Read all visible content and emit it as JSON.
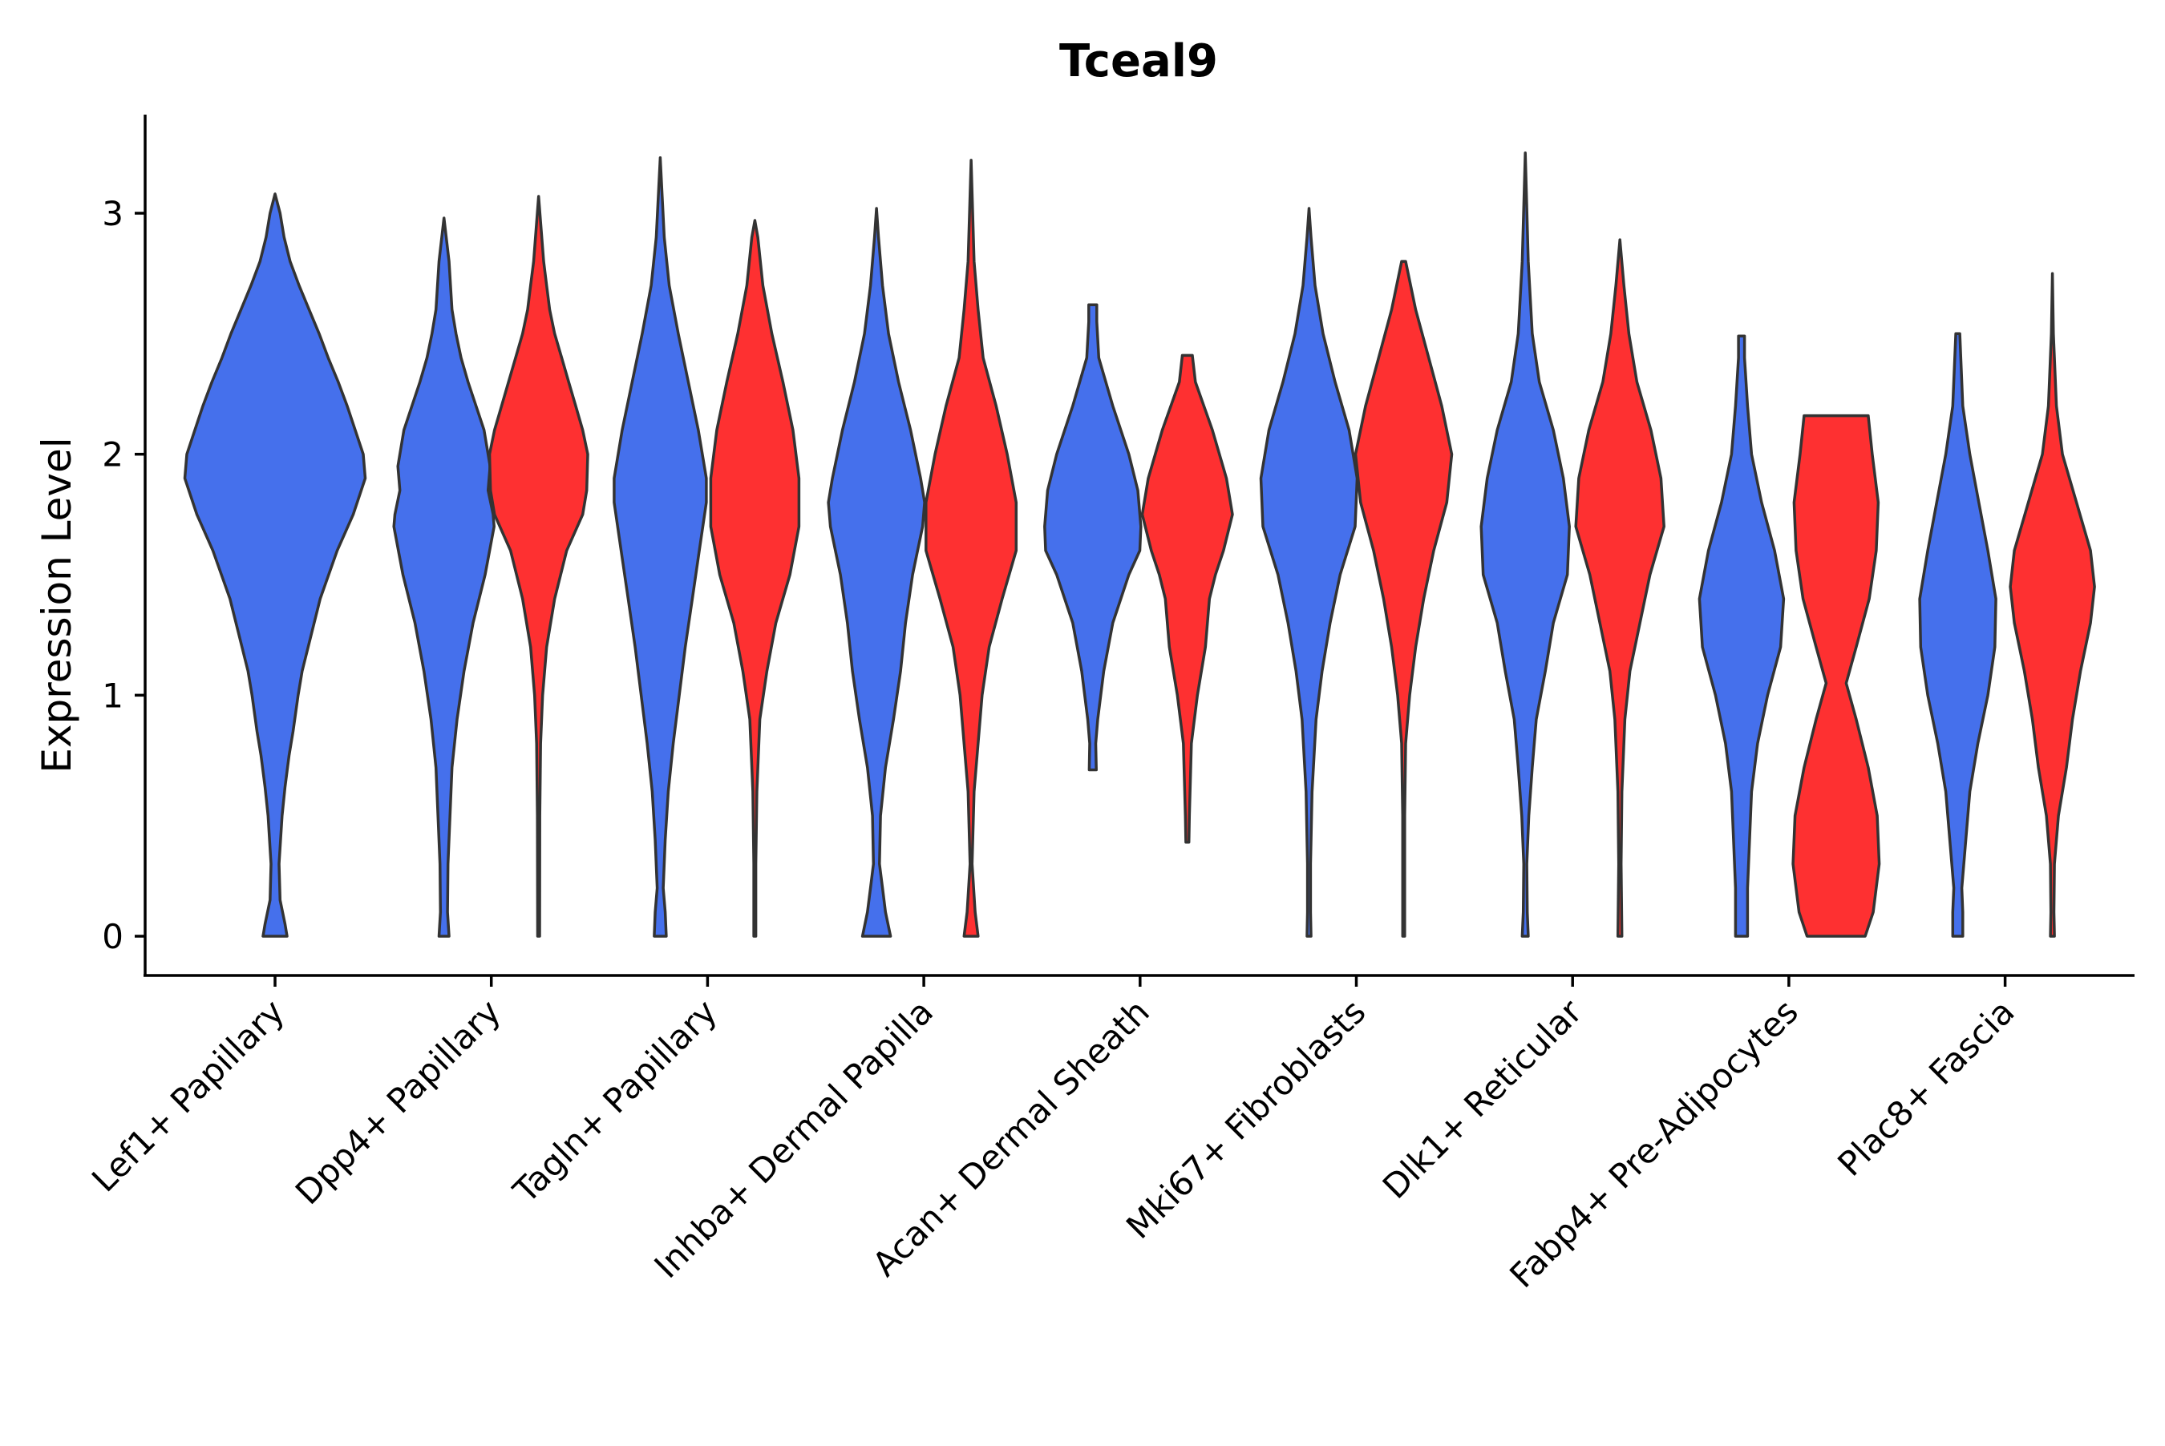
{
  "chart_data": {
    "type": "violin",
    "title": "Tceal9",
    "xlabel": "",
    "ylabel": "Expression Level",
    "ylim": [
      -0.16,
      3.4
    ],
    "yticks": [
      0,
      1,
      2,
      3
    ],
    "grid": false,
    "legend": "none",
    "series": [
      {
        "name": "group A",
        "color": "#4570ec"
      },
      {
        "name": "group B",
        "color": "#fe3031"
      }
    ],
    "categories": [
      "Lef1+ Papillary",
      "Dpp4+ Papillary",
      "Tagln+ Papillary",
      "Inhba+ Dermal Papilla",
      "Acan+ Dermal Sheath",
      "Mki67+ Fibroblasts",
      "Dlk1+ Reticular",
      "Fabp4+ Pre-Adipocytes",
      "Plac8+ Fascia"
    ],
    "violins": [
      {
        "category": "Lef1+ Papillary",
        "series": 0,
        "min": 0,
        "max": 3.08,
        "profile": [
          [
            0,
            0.12
          ],
          [
            0.05,
            0.1
          ],
          [
            0.15,
            0.05
          ],
          [
            0.3,
            0.04
          ],
          [
            0.5,
            0.07
          ],
          [
            0.62,
            0.1
          ],
          [
            0.75,
            0.14
          ],
          [
            0.85,
            0.18
          ],
          [
            1.0,
            0.23
          ],
          [
            1.1,
            0.27
          ],
          [
            1.2,
            0.33
          ],
          [
            1.4,
            0.45
          ],
          [
            1.6,
            0.62
          ],
          [
            1.75,
            0.78
          ],
          [
            1.9,
            0.9
          ],
          [
            2.0,
            0.88
          ],
          [
            2.1,
            0.8
          ],
          [
            2.2,
            0.72
          ],
          [
            2.3,
            0.63
          ],
          [
            2.4,
            0.53
          ],
          [
            2.5,
            0.44
          ],
          [
            2.6,
            0.34
          ],
          [
            2.7,
            0.24
          ],
          [
            2.8,
            0.15
          ],
          [
            2.9,
            0.09
          ],
          [
            3.0,
            0.05
          ],
          [
            3.08,
            0
          ]
        ]
      },
      {
        "category": "Dpp4+ Papillary",
        "series": 0,
        "min": 0,
        "max": 2.98,
        "profile": [
          [
            0,
            0.05
          ],
          [
            0.1,
            0.035
          ],
          [
            0.3,
            0.04
          ],
          [
            0.5,
            0.06
          ],
          [
            0.7,
            0.08
          ],
          [
            0.9,
            0.13
          ],
          [
            1.1,
            0.2
          ],
          [
            1.3,
            0.29
          ],
          [
            1.5,
            0.41
          ],
          [
            1.7,
            0.5
          ],
          [
            1.75,
            0.49
          ],
          [
            1.85,
            0.44
          ],
          [
            1.95,
            0.46
          ],
          [
            2.1,
            0.4
          ],
          [
            2.2,
            0.32
          ],
          [
            2.3,
            0.24
          ],
          [
            2.4,
            0.17
          ],
          [
            2.5,
            0.12
          ],
          [
            2.6,
            0.08
          ],
          [
            2.8,
            0.05
          ],
          [
            2.98,
            0
          ]
        ]
      },
      {
        "category": "Dpp4+ Papillary",
        "series": 1,
        "min": 0,
        "max": 3.07,
        "profile": [
          [
            0,
            0.01
          ],
          [
            0.5,
            0.012
          ],
          [
            0.8,
            0.02
          ],
          [
            1.0,
            0.04
          ],
          [
            1.2,
            0.08
          ],
          [
            1.4,
            0.16
          ],
          [
            1.6,
            0.28
          ],
          [
            1.75,
            0.44
          ],
          [
            1.85,
            0.48
          ],
          [
            2.0,
            0.49
          ],
          [
            2.1,
            0.44
          ],
          [
            2.2,
            0.37
          ],
          [
            2.3,
            0.3
          ],
          [
            2.4,
            0.23
          ],
          [
            2.5,
            0.16
          ],
          [
            2.6,
            0.11
          ],
          [
            2.7,
            0.08
          ],
          [
            2.8,
            0.05
          ],
          [
            3.07,
            0
          ]
        ]
      },
      {
        "category": "Tagln+ Papillary",
        "series": 0,
        "min": 0,
        "max": 3.23,
        "profile": [
          [
            0,
            0.06
          ],
          [
            0.1,
            0.05
          ],
          [
            0.2,
            0.03
          ],
          [
            0.4,
            0.05
          ],
          [
            0.6,
            0.08
          ],
          [
            0.8,
            0.13
          ],
          [
            1.0,
            0.19
          ],
          [
            1.2,
            0.25
          ],
          [
            1.4,
            0.32
          ],
          [
            1.6,
            0.39
          ],
          [
            1.8,
            0.46
          ],
          [
            1.9,
            0.46
          ],
          [
            2.1,
            0.38
          ],
          [
            2.3,
            0.28
          ],
          [
            2.5,
            0.18
          ],
          [
            2.7,
            0.09
          ],
          [
            2.9,
            0.04
          ],
          [
            3.23,
            0
          ]
        ]
      },
      {
        "category": "Tagln+ Papillary",
        "series": 1,
        "min": 0,
        "max": 2.97,
        "profile": [
          [
            0,
            0.01
          ],
          [
            0.3,
            0.01
          ],
          [
            0.6,
            0.02
          ],
          [
            0.9,
            0.05
          ],
          [
            1.1,
            0.12
          ],
          [
            1.3,
            0.21
          ],
          [
            1.5,
            0.35
          ],
          [
            1.7,
            0.44
          ],
          [
            1.9,
            0.44
          ],
          [
            2.1,
            0.38
          ],
          [
            2.3,
            0.28
          ],
          [
            2.5,
            0.17
          ],
          [
            2.7,
            0.08
          ],
          [
            2.9,
            0.03
          ],
          [
            2.97,
            0
          ]
        ]
      },
      {
        "category": "Inhba+ Dermal Papilla",
        "series": 0,
        "min": 0,
        "max": 3.02,
        "profile": [
          [
            0,
            0.14
          ],
          [
            0.1,
            0.09
          ],
          [
            0.2,
            0.06
          ],
          [
            0.3,
            0.03
          ],
          [
            0.5,
            0.04
          ],
          [
            0.7,
            0.09
          ],
          [
            0.9,
            0.17
          ],
          [
            1.1,
            0.24
          ],
          [
            1.3,
            0.29
          ],
          [
            1.5,
            0.36
          ],
          [
            1.7,
            0.46
          ],
          [
            1.8,
            0.48
          ],
          [
            1.9,
            0.44
          ],
          [
            2.1,
            0.34
          ],
          [
            2.3,
            0.22
          ],
          [
            2.5,
            0.12
          ],
          [
            2.7,
            0.06
          ],
          [
            2.9,
            0.02
          ],
          [
            3.02,
            0
          ]
        ]
      },
      {
        "category": "Inhba+ Dermal Papilla",
        "series": 1,
        "min": 0,
        "max": 3.22,
        "profile": [
          [
            0,
            0.07
          ],
          [
            0.1,
            0.04
          ],
          [
            0.3,
            0.01
          ],
          [
            0.6,
            0.03
          ],
          [
            0.8,
            0.07
          ],
          [
            1.0,
            0.11
          ],
          [
            1.2,
            0.18
          ],
          [
            1.4,
            0.31
          ],
          [
            1.6,
            0.45
          ],
          [
            1.8,
            0.45
          ],
          [
            2.0,
            0.36
          ],
          [
            2.2,
            0.25
          ],
          [
            2.4,
            0.12
          ],
          [
            2.6,
            0.07
          ],
          [
            2.8,
            0.03
          ],
          [
            3.22,
            0
          ]
        ]
      },
      {
        "category": "Acan+ Dermal Sheath",
        "series": 0,
        "min": 0.69,
        "max": 2.62,
        "profile": [
          [
            0.69,
            0.035
          ],
          [
            0.8,
            0.03
          ],
          [
            0.9,
            0.05
          ],
          [
            1.1,
            0.11
          ],
          [
            1.3,
            0.2
          ],
          [
            1.5,
            0.36
          ],
          [
            1.6,
            0.47
          ],
          [
            1.7,
            0.48
          ],
          [
            1.85,
            0.45
          ],
          [
            2.0,
            0.36
          ],
          [
            2.2,
            0.2
          ],
          [
            2.4,
            0.06
          ],
          [
            2.55,
            0.04
          ],
          [
            2.62,
            0.04
          ]
        ]
      },
      {
        "category": "Acan+ Dermal Sheath",
        "series": 1,
        "min": 0.39,
        "max": 2.41,
        "profile": [
          [
            0.39,
            0.015
          ],
          [
            0.5,
            0.02
          ],
          [
            0.8,
            0.04
          ],
          [
            1.0,
            0.1
          ],
          [
            1.2,
            0.18
          ],
          [
            1.4,
            0.22
          ],
          [
            1.5,
            0.28
          ],
          [
            1.6,
            0.36
          ],
          [
            1.75,
            0.45
          ],
          [
            1.9,
            0.39
          ],
          [
            2.1,
            0.25
          ],
          [
            2.3,
            0.08
          ],
          [
            2.41,
            0.05
          ]
        ]
      },
      {
        "category": "Mki67+ Fibroblasts",
        "series": 0,
        "min": 0,
        "max": 3.02,
        "profile": [
          [
            0,
            0.02
          ],
          [
            0.1,
            0.015
          ],
          [
            0.3,
            0.015
          ],
          [
            0.6,
            0.03
          ],
          [
            0.9,
            0.07
          ],
          [
            1.1,
            0.13
          ],
          [
            1.3,
            0.21
          ],
          [
            1.5,
            0.31
          ],
          [
            1.7,
            0.46
          ],
          [
            1.9,
            0.48
          ],
          [
            2.1,
            0.4
          ],
          [
            2.3,
            0.26
          ],
          [
            2.5,
            0.14
          ],
          [
            2.7,
            0.06
          ],
          [
            2.9,
            0.02
          ],
          [
            3.02,
            0
          ]
        ]
      },
      {
        "category": "Mki67+ Fibroblasts",
        "series": 1,
        "min": 0,
        "max": 2.8,
        "profile": [
          [
            0,
            0.01
          ],
          [
            0.5,
            0.01
          ],
          [
            0.8,
            0.02
          ],
          [
            1.0,
            0.06
          ],
          [
            1.2,
            0.12
          ],
          [
            1.4,
            0.2
          ],
          [
            1.6,
            0.3
          ],
          [
            1.8,
            0.43
          ],
          [
            2.0,
            0.48
          ],
          [
            2.2,
            0.38
          ],
          [
            2.4,
            0.25
          ],
          [
            2.6,
            0.12
          ],
          [
            2.8,
            0.02
          ]
        ]
      },
      {
        "category": "Dlk1+ Reticular",
        "series": 0,
        "min": 0,
        "max": 3.25,
        "profile": [
          [
            0,
            0.03
          ],
          [
            0.1,
            0.02
          ],
          [
            0.3,
            0.015
          ],
          [
            0.5,
            0.035
          ],
          [
            0.7,
            0.07
          ],
          [
            0.9,
            0.11
          ],
          [
            1.1,
            0.2
          ],
          [
            1.3,
            0.28
          ],
          [
            1.5,
            0.42
          ],
          [
            1.7,
            0.44
          ],
          [
            1.9,
            0.38
          ],
          [
            2.1,
            0.28
          ],
          [
            2.3,
            0.14
          ],
          [
            2.5,
            0.07
          ],
          [
            2.8,
            0.03
          ],
          [
            3.25,
            0
          ]
        ]
      },
      {
        "category": "Dlk1+ Reticular",
        "series": 1,
        "min": 0,
        "max": 2.89,
        "profile": [
          [
            0,
            0.02
          ],
          [
            0.3,
            0.012
          ],
          [
            0.6,
            0.02
          ],
          [
            0.9,
            0.05
          ],
          [
            1.1,
            0.1
          ],
          [
            1.3,
            0.2
          ],
          [
            1.5,
            0.3
          ],
          [
            1.7,
            0.44
          ],
          [
            1.9,
            0.41
          ],
          [
            2.1,
            0.31
          ],
          [
            2.3,
            0.17
          ],
          [
            2.5,
            0.09
          ],
          [
            2.7,
            0.04
          ],
          [
            2.89,
            0
          ]
        ]
      },
      {
        "category": "Fabp4+ Pre-Adipocytes",
        "series": 0,
        "min": 0,
        "max": 2.49,
        "profile": [
          [
            0,
            0.06
          ],
          [
            0.2,
            0.06
          ],
          [
            0.4,
            0.08
          ],
          [
            0.6,
            0.1
          ],
          [
            0.8,
            0.16
          ],
          [
            1.0,
            0.26
          ],
          [
            1.2,
            0.39
          ],
          [
            1.4,
            0.42
          ],
          [
            1.6,
            0.33
          ],
          [
            1.8,
            0.2
          ],
          [
            2.0,
            0.1
          ],
          [
            2.2,
            0.06
          ],
          [
            2.4,
            0.03
          ],
          [
            2.49,
            0.03
          ]
        ]
      },
      {
        "category": "Fabp4+ Pre-Adipocytes",
        "series": 1,
        "min": 0,
        "max": 2.16,
        "profile": [
          [
            0,
            0.29
          ],
          [
            0.1,
            0.37
          ],
          [
            0.3,
            0.43
          ],
          [
            0.5,
            0.41
          ],
          [
            0.7,
            0.32
          ],
          [
            0.9,
            0.2
          ],
          [
            1.05,
            0.1
          ],
          [
            1.2,
            0.2
          ],
          [
            1.4,
            0.33
          ],
          [
            1.6,
            0.4
          ],
          [
            1.8,
            0.42
          ],
          [
            2.0,
            0.36
          ],
          [
            2.16,
            0.32
          ]
        ]
      },
      {
        "category": "Plac8+ Fascia",
        "series": 0,
        "min": 0,
        "max": 2.51,
        "profile": [
          [
            0,
            0.05
          ],
          [
            0.1,
            0.05
          ],
          [
            0.2,
            0.04
          ],
          [
            0.4,
            0.08
          ],
          [
            0.6,
            0.12
          ],
          [
            0.8,
            0.2
          ],
          [
            1.0,
            0.3
          ],
          [
            1.2,
            0.37
          ],
          [
            1.4,
            0.38
          ],
          [
            1.6,
            0.3
          ],
          [
            1.8,
            0.21
          ],
          [
            2.0,
            0.12
          ],
          [
            2.2,
            0.05
          ],
          [
            2.5,
            0.02
          ]
        ]
      },
      {
        "category": "Plac8+ Fascia",
        "series": 1,
        "min": 0,
        "max": 2.75,
        "profile": [
          [
            0,
            0.02
          ],
          [
            0.1,
            0.015
          ],
          [
            0.3,
            0.02
          ],
          [
            0.5,
            0.06
          ],
          [
            0.7,
            0.14
          ],
          [
            0.9,
            0.2
          ],
          [
            1.1,
            0.28
          ],
          [
            1.3,
            0.38
          ],
          [
            1.45,
            0.42
          ],
          [
            1.6,
            0.38
          ],
          [
            1.8,
            0.24
          ],
          [
            2.0,
            0.1
          ],
          [
            2.2,
            0.04
          ],
          [
            2.5,
            0.01
          ],
          [
            2.75,
            0
          ]
        ]
      }
    ]
  }
}
